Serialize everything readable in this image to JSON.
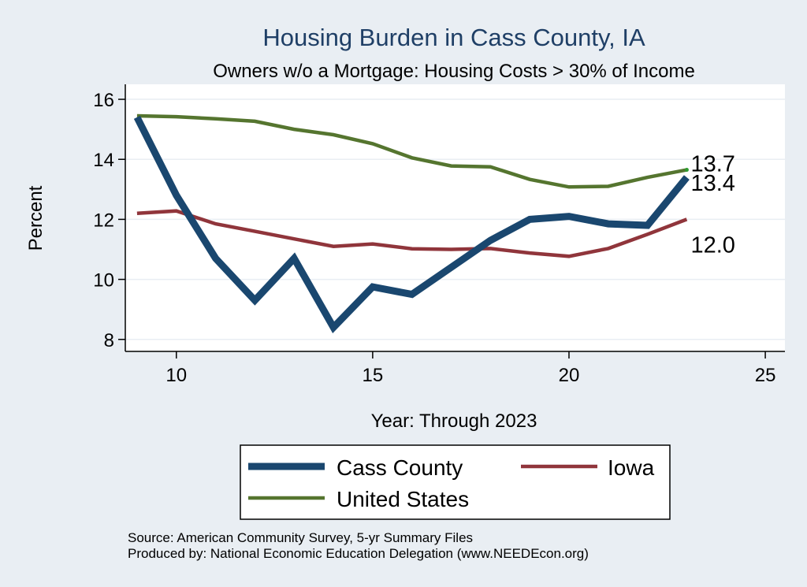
{
  "chart_data": {
    "type": "line",
    "title": "Housing Burden in Cass County, IA",
    "subtitle": "Owners w/o a Mortgage: Housing Costs > 30% of Income",
    "xlabel": "Year: Through 2023",
    "ylabel": "Percent",
    "xlim": [
      8.7,
      25.5
    ],
    "ylim": [
      7.6,
      16.5
    ],
    "xticks": [
      10,
      15,
      20,
      25
    ],
    "yticks": [
      8,
      10,
      12,
      14,
      16
    ],
    "grid": true,
    "legend_position": "bottom",
    "x": [
      9,
      10,
      11,
      12,
      13,
      14,
      15,
      16,
      17,
      18,
      19,
      20,
      21,
      22,
      23
    ],
    "series": [
      {
        "name": "Cass County",
        "color": "#1a476f",
        "values": [
          15.4,
          12.8,
          10.7,
          9.3,
          10.7,
          8.4,
          9.75,
          9.5,
          10.4,
          11.3,
          12.0,
          12.1,
          11.85,
          11.8,
          13.4
        ],
        "end_label": "13.4"
      },
      {
        "name": "Iowa",
        "color": "#90353b",
        "values": [
          12.2,
          12.28,
          11.85,
          11.6,
          11.35,
          11.1,
          11.18,
          11.02,
          11.0,
          11.03,
          10.88,
          10.77,
          11.03,
          11.5,
          12.0
        ],
        "end_label": "12.0"
      },
      {
        "name": "United States",
        "color": "#55752f",
        "values": [
          15.45,
          15.42,
          15.35,
          15.27,
          15.0,
          14.82,
          14.52,
          14.05,
          13.78,
          13.75,
          13.33,
          13.08,
          13.1,
          13.4,
          13.65
        ],
        "end_label": "13.7"
      }
    ]
  },
  "footer": {
    "source": "Source: American Community Survey, 5-yr Summary Files",
    "produced": "Produced by: National Economic Education Delegation (www.NEEDEcon.org)"
  }
}
